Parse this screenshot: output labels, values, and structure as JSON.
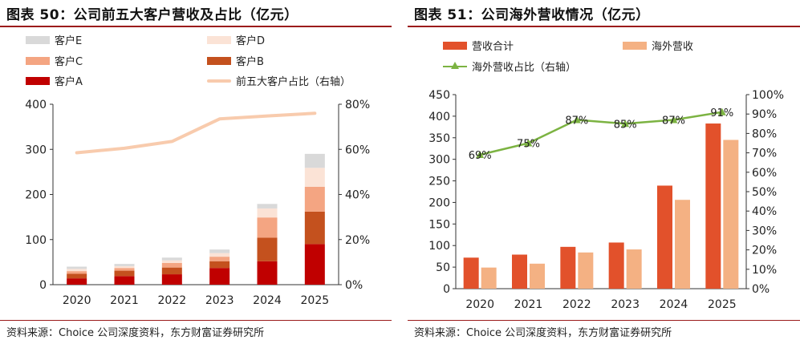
{
  "left_chart": {
    "title": "图表 50：公司前五大客户营收及占比（亿元）",
    "source": "资料来源：Choice 公司深度资料，东方财富证券研究所",
    "legend": [
      {
        "label": "客户E",
        "color": "#d9d9d9",
        "kind": "box"
      },
      {
        "label": "客户D",
        "color": "#fbe3d6",
        "kind": "box"
      },
      {
        "label": "客户C",
        "color": "#f4a582",
        "kind": "box"
      },
      {
        "label": "客户B",
        "color": "#c4511e",
        "kind": "box"
      },
      {
        "label": "客户A",
        "color": "#c00000",
        "kind": "box"
      },
      {
        "label": "前五大客户占比（右轴）",
        "color": "#f8cbad",
        "kind": "line"
      }
    ]
  },
  "right_chart": {
    "title": "图表 51：公司海外营收情况（亿元）",
    "source": "资料来源：Choice 公司深度资料，东方财富证券研究所",
    "legend": [
      {
        "label": "营收合计",
        "color": "#e2512b",
        "kind": "box"
      },
      {
        "label": "海外营收",
        "color": "#f4b183",
        "kind": "box"
      },
      {
        "label": "海外营收占比（右轴）",
        "color": "#7cb342",
        "kind": "marker-line"
      }
    ]
  },
  "chart_data": [
    {
      "type": "bar",
      "stacked": true,
      "categories": [
        "2020",
        "2021",
        "2022",
        "2023",
        "2024",
        "2025"
      ],
      "series": [
        {
          "name": "客户A",
          "color": "#c00000",
          "values": [
            14,
            19,
            23,
            37,
            52,
            90
          ]
        },
        {
          "name": "客户B",
          "color": "#c4511e",
          "values": [
            10,
            12,
            15,
            15,
            52,
            72
          ]
        },
        {
          "name": "客户C",
          "color": "#f4a582",
          "values": [
            6,
            6,
            10,
            10,
            45,
            55
          ]
        },
        {
          "name": "客户D",
          "color": "#fbe3d6",
          "values": [
            5,
            4,
            6,
            8,
            20,
            42
          ]
        },
        {
          "name": "客户E",
          "color": "#d9d9d9",
          "values": [
            5,
            5,
            6,
            8,
            10,
            31
          ]
        }
      ],
      "line_series": {
        "name": "前五大客户占比（右轴）",
        "color": "#f8cbad",
        "values": [
          58.5,
          60.5,
          63.5,
          73.5,
          74.8,
          76
        ]
      },
      "ylim": [
        0,
        400
      ],
      "yticks": [
        0,
        100,
        200,
        300,
        400
      ],
      "y2lim": [
        0,
        80
      ],
      "y2ticks": [
        "0%",
        "20%",
        "40%",
        "60%",
        "80%"
      ],
      "grid": false,
      "legend_position": "top"
    },
    {
      "type": "bar",
      "stacked": false,
      "categories": [
        "2020",
        "2021",
        "2022",
        "2023",
        "2024",
        "2025"
      ],
      "series": [
        {
          "name": "营收合计",
          "color": "#e2512b",
          "values": [
            72,
            79,
            97,
            107,
            239,
            383
          ]
        },
        {
          "name": "海外营收",
          "color": "#f4b183",
          "values": [
            49,
            58,
            84,
            91,
            206,
            345
          ]
        }
      ],
      "line_series": {
        "name": "海外营收占比（右轴）",
        "color": "#7cb342",
        "values": [
          69,
          75,
          87,
          85,
          87,
          91
        ],
        "labels": [
          "69%",
          "75%",
          "87%",
          "85%",
          "87%",
          "91%"
        ]
      },
      "ylim": [
        0,
        450
      ],
      "yticks": [
        0,
        50,
        100,
        150,
        200,
        250,
        300,
        350,
        400,
        450
      ],
      "y2lim": [
        0,
        100
      ],
      "y2ticks": [
        "0%",
        "10%",
        "20%",
        "30%",
        "40%",
        "50%",
        "60%",
        "70%",
        "80%",
        "90%",
        "100%"
      ],
      "grid": false,
      "legend_position": "top"
    }
  ]
}
